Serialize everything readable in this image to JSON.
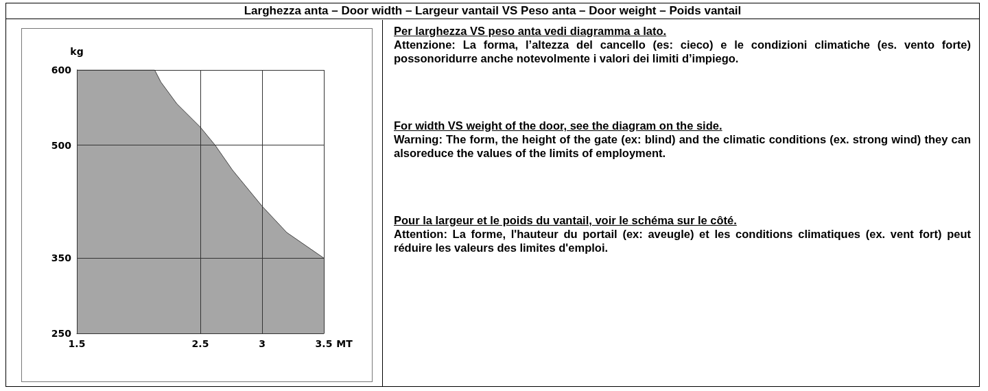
{
  "chart_data": {
    "type": "area",
    "title": "Larghezza anta  –  Door width  –  Largeur vantail  VS  Peso anta  –  Door weight  –  Poids vantail",
    "xlabel": "MT",
    "ylabel": "kg",
    "x": [
      1.5,
      2.13,
      2.18,
      2.31,
      2.5,
      2.62,
      2.76,
      3,
      3.2,
      3.5
    ],
    "series": [
      {
        "color": "#a6a6a6",
        "values": [
          600,
          600,
          584,
          555,
          524,
          500,
          467,
          419,
          384,
          350
        ]
      }
    ],
    "xlim": [
      1.5,
      3.5
    ],
    "xticks": [
      1.5,
      2.5,
      3,
      3.5
    ],
    "ylim": [
      250,
      600
    ],
    "yticks": [
      250,
      350,
      500,
      600
    ],
    "grid": true,
    "marker": "none",
    "line_style": "solid",
    "annotations": [
      "Per larghezza VS peso anta vedi diagramma a lato.",
      "Attenzione: La forma, l’altezza del cancello (es: cieco) e le condizioni climatiche (es. vento forte) possonoridurre anche notevolmente i valori dei limiti d’impiego.",
      "For width VS weight of the door, see the diagram on the side.",
      "Warning: The form, the height of the gate (ex: blind) and the climatic conditions (ex. strong wind) they can alsoreduce the values of the limits of employment.",
      "Pour la largeur et le poids du vantail, voir le schéma sur le côté.",
      "Attention: La forme, l'hauteur du portail (ex: aveugle) et les conditions climatiques (ex. vent fort) peut réduire les valeurs des limites d'emploi."
    ]
  }
}
